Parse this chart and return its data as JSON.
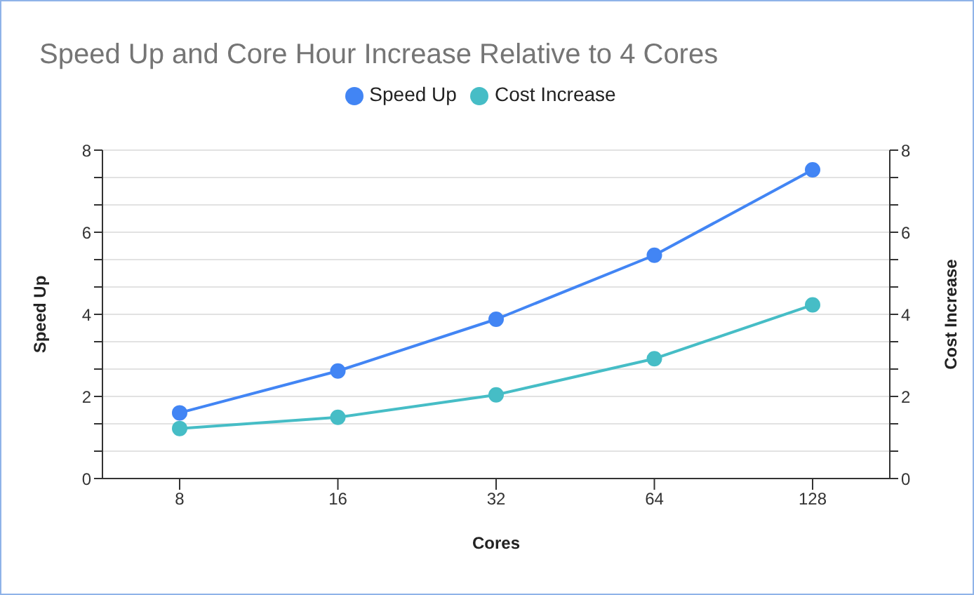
{
  "chart_data": {
    "type": "line",
    "title": "Speed Up and Core Hour Increase Relative to 4 Cores",
    "xlabel": "Cores",
    "ylabel": "Speed Up",
    "y2label": "Cost Increase",
    "categories": [
      "8",
      "16",
      "32",
      "64",
      "128"
    ],
    "series": [
      {
        "name": "Speed Up",
        "color": "#4285f4",
        "values": [
          1.6,
          2.62,
          3.88,
          5.44,
          7.52
        ]
      },
      {
        "name": "Cost Increase",
        "color": "#46bdc6",
        "values": [
          1.22,
          1.49,
          2.04,
          2.92,
          4.23
        ],
        "axis": "y2"
      }
    ],
    "ylim": [
      0,
      8
    ],
    "yticks": [
      0,
      {
        "value": 0.667,
        "label": null
      },
      {
        "value": 1.333,
        "label": null
      },
      2,
      {
        "value": 2.667,
        "label": null
      },
      {
        "value": 3.333,
        "label": null
      },
      4,
      {
        "value": 4.667,
        "label": null
      },
      {
        "value": 5.333,
        "label": null
      },
      6,
      {
        "value": 6.667,
        "label": null
      },
      {
        "value": 7.333,
        "label": null
      },
      8
    ],
    "y2lim": [
      0,
      8
    ],
    "y2ticks": [
      0,
      {
        "value": 0.667,
        "label": null
      },
      {
        "value": 1.333,
        "label": null
      },
      2,
      {
        "value": 2.667,
        "label": null
      },
      {
        "value": 3.333,
        "label": null
      },
      4,
      {
        "value": 4.667,
        "label": null
      },
      {
        "value": 5.333,
        "label": null
      },
      6,
      {
        "value": 6.667,
        "label": null
      },
      {
        "value": 7.333,
        "label": null
      },
      8
    ],
    "grid": "y",
    "legend": "top",
    "marker": "circle",
    "line_style": "solid"
  }
}
